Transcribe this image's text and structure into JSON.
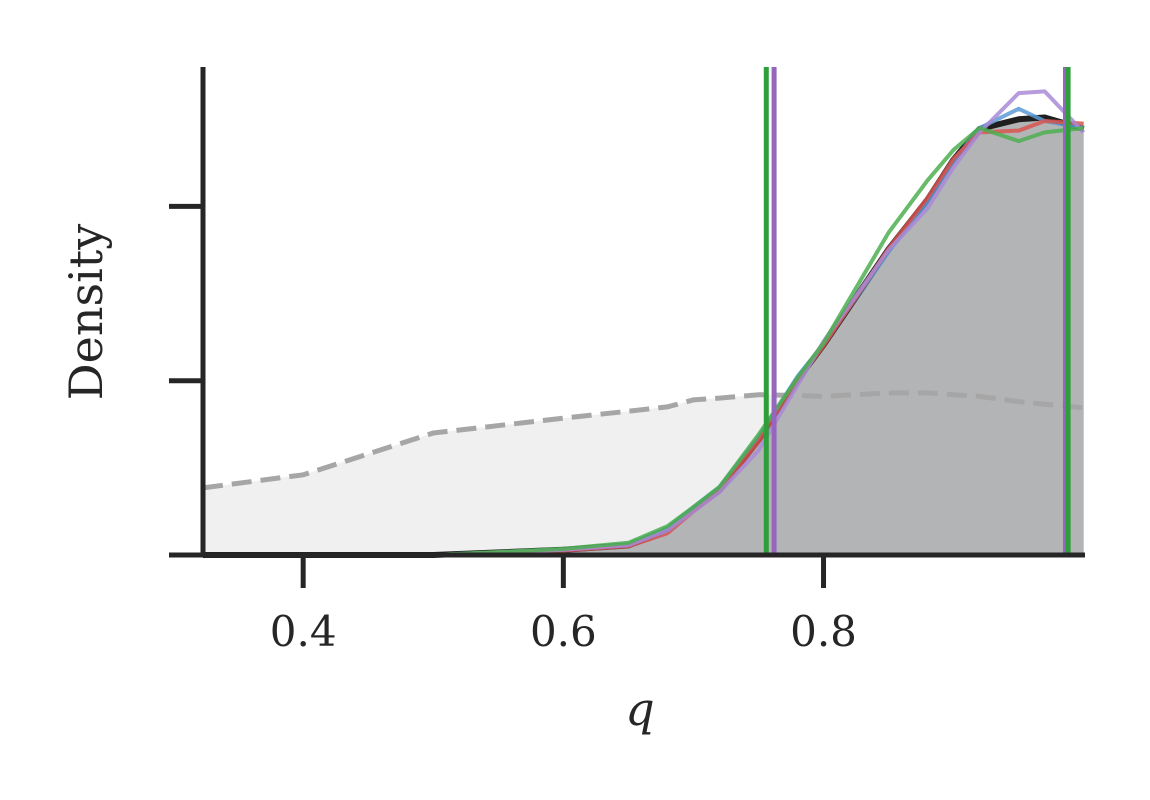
{
  "chart_data": {
    "type": "density",
    "xlabel": "q",
    "ylabel": "Density",
    "x": [
      0.323,
      0.4,
      0.5,
      0.6,
      0.65,
      0.68,
      0.7,
      0.72,
      0.75,
      0.78,
      0.8,
      0.85,
      0.88,
      0.9,
      0.92,
      0.95,
      0.97,
      1.0
    ],
    "xlim": [
      0.323,
      1.001
    ],
    "xticks": [
      0.4,
      0.6,
      0.8
    ],
    "ylim": [
      0,
      5.6
    ],
    "yticks": [
      0,
      2,
      4
    ],
    "prior": {
      "color": "#a6a6a6",
      "fill": "#f0f0f0",
      "values": [
        0.77,
        0.92,
        1.4,
        1.57,
        1.65,
        1.7,
        1.78,
        1.8,
        1.84,
        1.83,
        1.82,
        1.86,
        1.86,
        1.84,
        1.82,
        1.76,
        1.73,
        1.69
      ]
    },
    "posterior_fill": "#b3b4b6",
    "series": [
      {
        "color": "#1f1f1f",
        "values": [
          0,
          0,
          0,
          0.06,
          0.11,
          0.29,
          0.52,
          0.75,
          1.32,
          2.01,
          2.41,
          3.51,
          4.08,
          4.54,
          4.89,
          5.0,
          5.02,
          4.89
        ]
      },
      {
        "color": "#5b9bd5",
        "values": [
          0,
          0,
          0,
          0.06,
          0.12,
          0.31,
          0.55,
          0.78,
          1.35,
          2.05,
          2.42,
          3.48,
          4.05,
          4.52,
          4.9,
          5.12,
          4.98,
          4.9
        ]
      },
      {
        "color": "#d9534f",
        "values": [
          0,
          0,
          0,
          0.05,
          0.1,
          0.25,
          0.5,
          0.74,
          1.3,
          2.0,
          2.4,
          3.52,
          4.1,
          4.55,
          4.85,
          4.87,
          4.98,
          4.95
        ]
      },
      {
        "color": "#a98bd6",
        "values": [
          0,
          0,
          0,
          0.06,
          0.11,
          0.28,
          0.5,
          0.72,
          1.2,
          1.95,
          2.45,
          3.5,
          3.98,
          4.45,
          4.85,
          5.3,
          5.32,
          4.85
        ]
      },
      {
        "color": "#4caf50",
        "values": [
          0,
          0,
          0,
          0.07,
          0.14,
          0.33,
          0.55,
          0.78,
          1.38,
          2.03,
          2.43,
          3.7,
          4.3,
          4.65,
          4.9,
          4.75,
          4.85,
          4.9
        ]
      }
    ],
    "vlines": [
      {
        "color": "#9467bd",
        "values": [
          0.762,
          0.986
        ]
      },
      {
        "color": "#2e9e3a",
        "values": [
          0.756,
          0.988
        ]
      }
    ]
  }
}
